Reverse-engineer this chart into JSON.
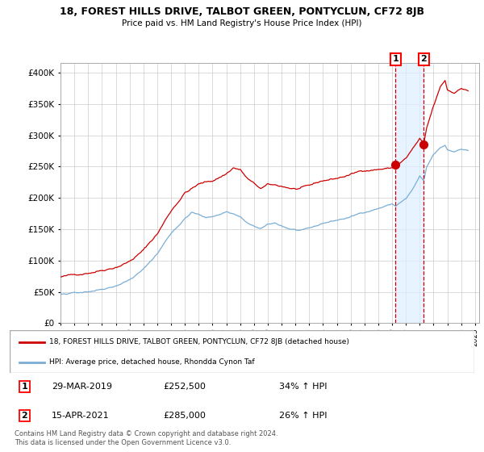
{
  "title": "18, FOREST HILLS DRIVE, TALBOT GREEN, PONTYCLUN, CF72 8JB",
  "subtitle": "Price paid vs. HM Land Registry's House Price Index (HPI)",
  "yticks": [
    0,
    50000,
    100000,
    150000,
    200000,
    250000,
    300000,
    350000,
    400000
  ],
  "ylim": [
    0,
    415000
  ],
  "xlim_start": 1995.0,
  "xlim_end": 2025.3,
  "red_color": "#cc0000",
  "blue_color": "#7aaed6",
  "shade_color": "#ddeeff",
  "marker1_year": 2019.24,
  "marker2_year": 2021.29,
  "marker1_price": 252500,
  "marker2_price": 285000,
  "legend_line1": "18, FOREST HILLS DRIVE, TALBOT GREEN, PONTYCLUN, CF72 8JB (detached house)",
  "legend_line2": "HPI: Average price, detached house, Rhondda Cynon Taf",
  "table_row1": [
    "1",
    "29-MAR-2019",
    "£252,500",
    "34% ↑ HPI"
  ],
  "table_row2": [
    "2",
    "15-APR-2021",
    "£285,000",
    "26% ↑ HPI"
  ],
  "footnote": "Contains HM Land Registry data © Crown copyright and database right 2024.\nThis data is licensed under the Open Government Licence v3.0."
}
